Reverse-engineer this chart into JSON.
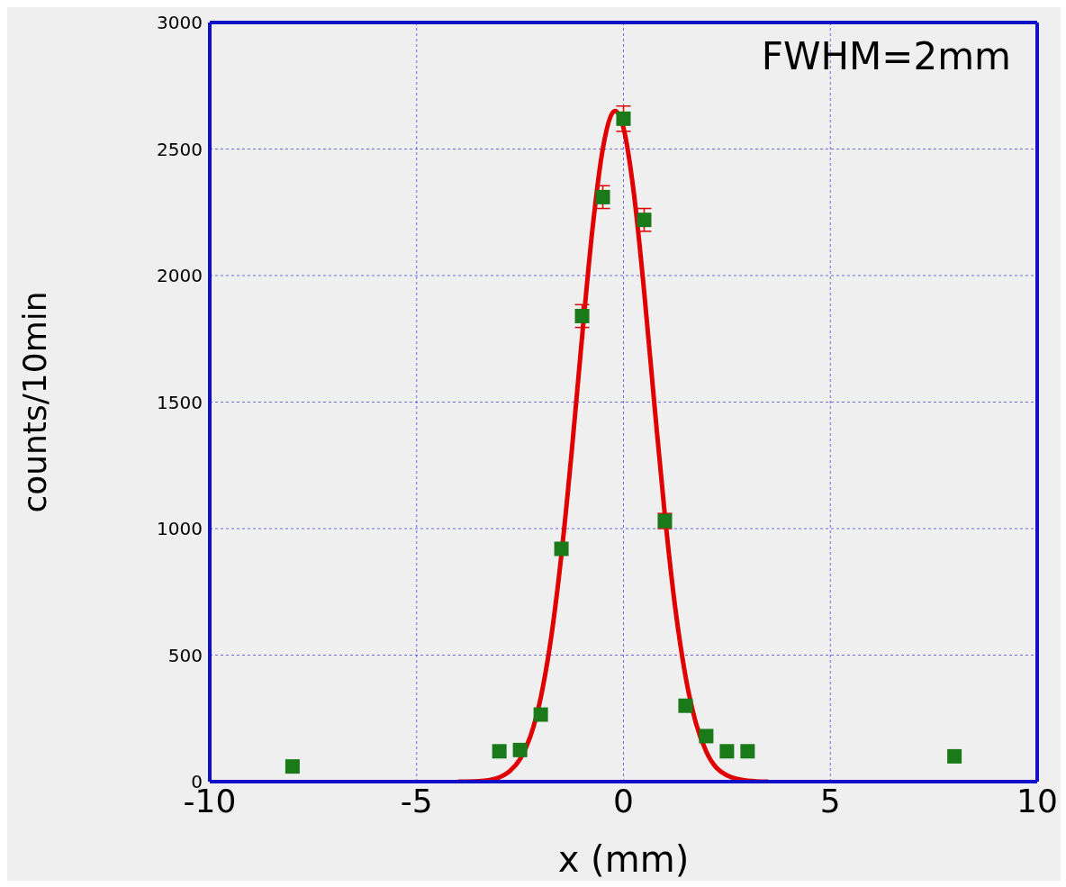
{
  "chart_data": {
    "type": "scatter",
    "xlabel": "x (mm)",
    "ylabel": "counts/10min",
    "annotations": [
      "FWHM=2mm"
    ],
    "xlim": [
      -10,
      10
    ],
    "xticks": [
      -10,
      -5,
      0,
      5,
      10
    ],
    "ylim": [
      0,
      3000
    ],
    "yticks": [
      0,
      500,
      1000,
      1500,
      2000,
      2500,
      3000
    ],
    "grid": true,
    "series": [
      {
        "marker": "square",
        "color": "#1a7a1a",
        "x": [
          -8,
          -3,
          -2.5,
          -2,
          -1.5,
          -1,
          -0.5,
          0,
          0.5,
          1,
          1.5,
          2,
          2.5,
          3,
          8
        ],
        "values": [
          60,
          120,
          125,
          265,
          920,
          1840,
          2310,
          2620,
          2220,
          1030,
          300,
          180,
          120,
          120,
          100
        ],
        "errors": [
          null,
          null,
          null,
          null,
          null,
          45,
          45,
          50,
          45,
          30,
          null,
          null,
          null,
          null,
          null
        ]
      },
      {
        "type": "line",
        "color": "#e00000",
        "line_style": "solid",
        "x": [
          -4,
          -3.5,
          -3,
          -2.75,
          -2.5,
          -2.25,
          -2,
          -1.75,
          -1.5,
          -1.25,
          -1,
          -0.75,
          -0.5,
          -0.25,
          -0.2,
          0,
          0.25,
          0.5,
          0.75,
          1,
          1.25,
          1.5,
          1.75,
          2,
          2.5,
          3,
          3.5
        ],
        "values": [
          0,
          2,
          17,
          41,
          89,
          179,
          332,
          568,
          897,
          1307,
          1759,
          2183,
          2501,
          2646,
          2650,
          2583,
          2327,
          1936,
          1486,
          1053,
          688,
          416,
          232,
          119,
          25,
          4,
          0
        ]
      }
    ]
  }
}
